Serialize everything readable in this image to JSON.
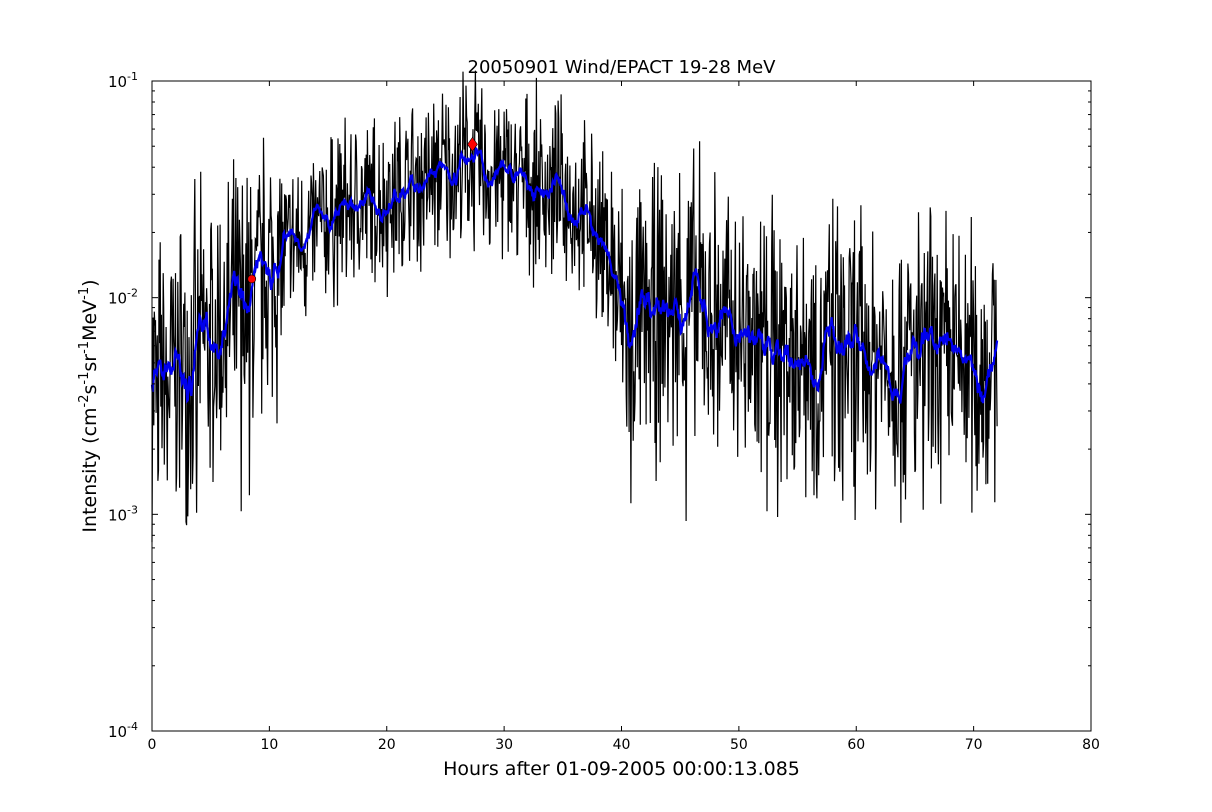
{
  "chart_data": {
    "type": "line",
    "title": "20050901 Wind/EPACT 19-28 MeV",
    "xlabel": "Hours after 01-09-2005 00:00:13.085",
    "ylabel_parts": [
      "Intensity (cm",
      "-2",
      "s",
      "-1",
      "sr",
      "-1",
      "MeV",
      "-1",
      ")"
    ],
    "xlim": [
      0,
      80
    ],
    "ylim": [
      0.0001,
      0.1
    ],
    "yscale": "log",
    "x_ticks": [
      0,
      10,
      20,
      30,
      40,
      50,
      60,
      70,
      80
    ],
    "x_tick_labels": [
      "0",
      "10",
      "20",
      "30",
      "40",
      "50",
      "60",
      "70",
      "80"
    ],
    "y_ticks": [
      {
        "value": 0.0001,
        "base": "10",
        "exp": "-4"
      },
      {
        "value": 0.001,
        "base": "10",
        "exp": "-3"
      },
      {
        "value": 0.01,
        "base": "10",
        "exp": "-2"
      },
      {
        "value": 0.1,
        "base": "10",
        "exp": "-1"
      }
    ],
    "grid": false,
    "series": [
      {
        "kind": "raw",
        "color": "#000000",
        "trend": [
          [
            0.0,
            0.0045
          ],
          [
            1.0,
            0.004
          ],
          [
            2.5,
            0.005
          ],
          [
            4.0,
            0.006
          ],
          [
            6.0,
            0.007
          ],
          [
            8.0,
            0.009
          ],
          [
            10.0,
            0.013
          ],
          [
            12.0,
            0.017
          ],
          [
            14.0,
            0.02
          ],
          [
            16.0,
            0.025
          ],
          [
            18.0,
            0.027
          ],
          [
            20.0,
            0.028
          ],
          [
            22.0,
            0.032
          ],
          [
            24.0,
            0.036
          ],
          [
            26.0,
            0.04
          ],
          [
            27.0,
            0.043
          ],
          [
            28.0,
            0.04
          ],
          [
            30.0,
            0.036
          ],
          [
            32.0,
            0.034
          ],
          [
            34.0,
            0.032
          ],
          [
            36.0,
            0.027
          ],
          [
            38.0,
            0.02
          ],
          [
            39.0,
            0.015
          ],
          [
            40.0,
            0.008
          ],
          [
            41.0,
            0.007
          ],
          [
            43.0,
            0.008
          ],
          [
            45.0,
            0.0095
          ],
          [
            47.0,
            0.009
          ],
          [
            49.0,
            0.007
          ],
          [
            52.0,
            0.0065
          ],
          [
            55.0,
            0.006
          ],
          [
            60.0,
            0.0055
          ],
          [
            65.0,
            0.0052
          ],
          [
            70.0,
            0.005
          ],
          [
            72.0,
            0.005
          ]
        ],
        "range": [
          0,
          72
        ],
        "dips_x": [
          0.5,
          1.3,
          2.1,
          2.9,
          3.8,
          5.2,
          7.6,
          8.3,
          40.8,
          45.5,
          51.9,
          52.4,
          53.3,
          54.7,
          56.6,
          58.6,
          59.8,
          61.2,
          64.2,
          65.0,
          65.7,
          66.4,
          67.2,
          70.2
        ],
        "dip_value": 0.0009
      },
      {
        "kind": "smoothed",
        "color": "#0000ee"
      }
    ],
    "markers": [
      {
        "x": 8.5,
        "y": 0.0122,
        "color": "#ff0000",
        "shape": "circle"
      },
      {
        "x": 27.3,
        "y": 0.051,
        "color": "#ff0000",
        "shape": "diamond"
      }
    ]
  }
}
